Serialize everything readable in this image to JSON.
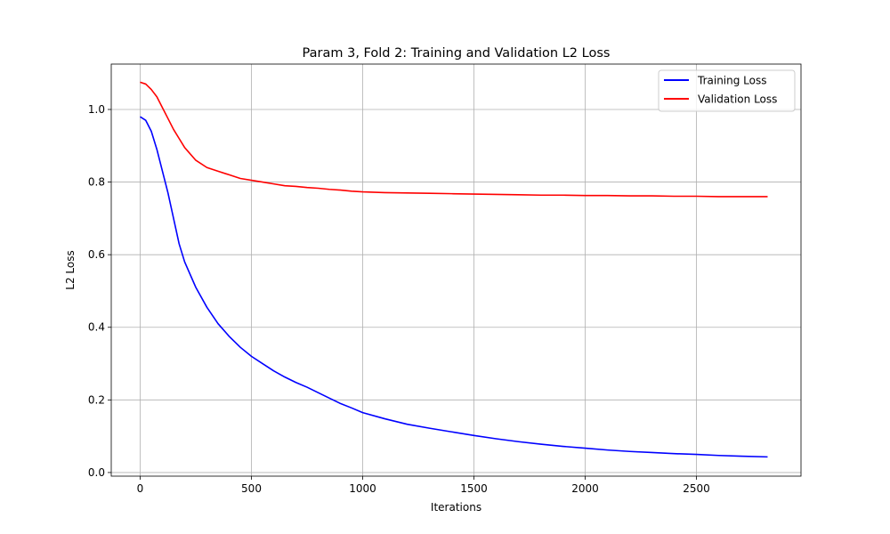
{
  "chart_data": {
    "type": "line",
    "title": "Param 3, Fold 2: Training and Validation L2 Loss",
    "xlabel": "Iterations",
    "ylabel": "L2 Loss",
    "xlim": [
      -130,
      2970
    ],
    "ylim": [
      -0.01,
      1.125
    ],
    "xticks": [
      0,
      500,
      1000,
      1500,
      2000,
      2500
    ],
    "xtick_labels": [
      "0",
      "500",
      "1000",
      "1500",
      "2000",
      "2500"
    ],
    "yticks": [
      0.0,
      0.2,
      0.4,
      0.6,
      0.8,
      1.0
    ],
    "ytick_labels": [
      "0.0",
      "0.2",
      "0.4",
      "0.6",
      "0.8",
      "1.0"
    ],
    "grid": true,
    "legend_position": "top-right",
    "series": [
      {
        "name": "Training Loss",
        "color": "#0000ff",
        "x": [
          0,
          25,
          50,
          75,
          100,
          125,
          150,
          175,
          200,
          250,
          300,
          350,
          400,
          450,
          500,
          550,
          600,
          650,
          700,
          750,
          800,
          850,
          900,
          950,
          1000,
          1100,
          1200,
          1300,
          1400,
          1500,
          1600,
          1700,
          1800,
          1900,
          2000,
          2100,
          2200,
          2300,
          2400,
          2500,
          2600,
          2700,
          2820
        ],
        "y": [
          0.98,
          0.97,
          0.94,
          0.89,
          0.83,
          0.77,
          0.7,
          0.63,
          0.58,
          0.51,
          0.455,
          0.41,
          0.375,
          0.345,
          0.32,
          0.3,
          0.28,
          0.263,
          0.248,
          0.235,
          0.22,
          0.205,
          0.19,
          0.178,
          0.165,
          0.148,
          0.133,
          0.122,
          0.112,
          0.102,
          0.093,
          0.085,
          0.078,
          0.072,
          0.067,
          0.062,
          0.058,
          0.055,
          0.052,
          0.05,
          0.047,
          0.045,
          0.043
        ]
      },
      {
        "name": "Validation Loss",
        "color": "#ff0000",
        "x": [
          0,
          25,
          50,
          75,
          100,
          125,
          150,
          175,
          200,
          250,
          300,
          350,
          400,
          450,
          500,
          550,
          600,
          650,
          700,
          750,
          800,
          850,
          900,
          950,
          1000,
          1100,
          1200,
          1300,
          1400,
          1500,
          1600,
          1700,
          1800,
          1900,
          2000,
          2100,
          2200,
          2300,
          2400,
          2500,
          2600,
          2700,
          2820
        ],
        "y": [
          1.075,
          1.07,
          1.055,
          1.035,
          1.005,
          0.975,
          0.945,
          0.92,
          0.895,
          0.86,
          0.84,
          0.83,
          0.82,
          0.81,
          0.805,
          0.8,
          0.795,
          0.79,
          0.788,
          0.785,
          0.783,
          0.78,
          0.778,
          0.775,
          0.773,
          0.771,
          0.77,
          0.769,
          0.768,
          0.767,
          0.766,
          0.765,
          0.764,
          0.764,
          0.763,
          0.763,
          0.762,
          0.762,
          0.761,
          0.761,
          0.76,
          0.76,
          0.76
        ]
      }
    ]
  }
}
